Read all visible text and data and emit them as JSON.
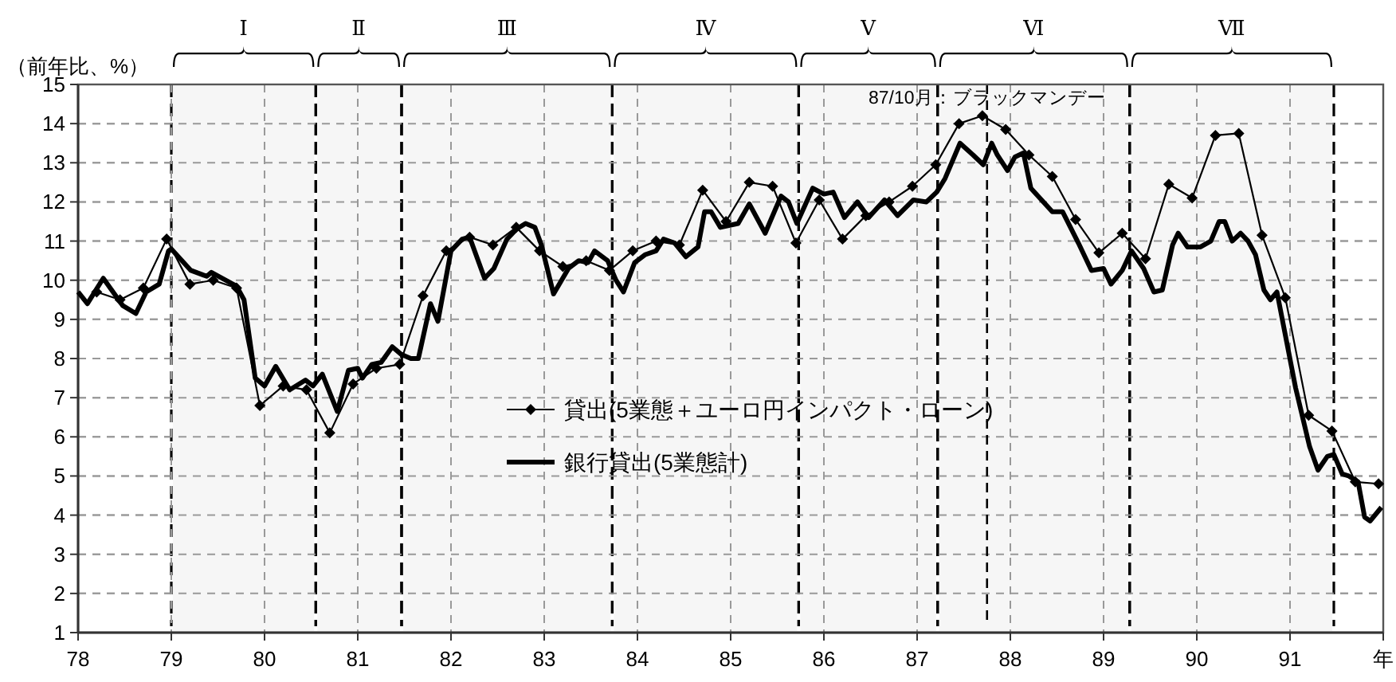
{
  "chart_data": {
    "type": "line",
    "ylabel": "（前年比、%）",
    "xlim": [
      78,
      92
    ],
    "xticks": [
      78,
      79,
      80,
      81,
      82,
      83,
      84,
      85,
      86,
      87,
      88,
      89,
      90,
      91,
      {
        "value": 92,
        "label": "年"
      }
    ],
    "ylim": [
      1,
      15
    ],
    "yticks": [
      1,
      2,
      3,
      4,
      5,
      6,
      7,
      8,
      9,
      10,
      11,
      12,
      13,
      14,
      15
    ],
    "grid": true,
    "legend": "center",
    "series": [
      {
        "name": "貸出(5業態＋ユーロ円インパクト・ローン)",
        "color": "#000000",
        "marker": "diamond",
        "x": [
          78.2,
          78.45,
          78.7,
          78.95,
          79.2,
          79.45,
          79.7,
          79.95,
          80.2,
          80.45,
          80.7,
          80.95,
          81.2,
          81.45,
          81.7,
          81.95,
          82.2,
          82.45,
          82.7,
          82.95,
          83.2,
          83.45,
          83.7,
          83.95,
          84.2,
          84.45,
          84.7,
          84.95,
          85.2,
          85.45,
          85.7,
          85.95,
          86.2,
          86.45,
          86.7,
          86.95,
          87.2,
          87.45,
          87.7,
          87.95,
          88.2,
          88.45,
          88.7,
          88.95,
          89.2,
          89.45,
          89.7,
          89.95,
          90.2,
          90.45,
          90.7,
          90.95,
          91.2,
          91.45,
          91.7,
          91.95
        ],
        "values": [
          9.7,
          9.5,
          9.8,
          11.05,
          9.9,
          10.0,
          9.8,
          6.8,
          7.3,
          7.2,
          6.1,
          7.35,
          7.75,
          7.85,
          9.6,
          10.75,
          11.1,
          10.9,
          11.35,
          10.75,
          10.35,
          10.5,
          10.25,
          10.75,
          11.0,
          10.9,
          12.3,
          11.5,
          12.5,
          12.4,
          10.95,
          12.05,
          11.05,
          11.65,
          12.0,
          12.4,
          12.95,
          14.0,
          14.2,
          13.85,
          13.2,
          12.65,
          11.55,
          10.7,
          11.2,
          10.55,
          12.45,
          12.1,
          13.7,
          13.75,
          11.15,
          9.55,
          6.55,
          6.15,
          4.85,
          4.8
        ]
      },
      {
        "name": "銀行貸出(5業態計)",
        "color": "#000000",
        "marker": "none",
        "x": [
          78.0,
          78.1,
          78.27,
          78.48,
          78.62,
          78.73,
          78.87,
          78.97,
          79.0,
          79.21,
          79.38,
          79.43,
          79.7,
          79.78,
          79.9,
          80.0,
          80.12,
          80.27,
          80.44,
          80.52,
          80.62,
          80.78,
          80.9,
          81.0,
          81.05,
          81.15,
          81.25,
          81.37,
          81.47,
          81.57,
          81.65,
          81.78,
          81.86,
          82.0,
          82.12,
          82.2,
          82.36,
          82.46,
          82.6,
          82.7,
          82.8,
          82.9,
          82.97,
          83.1,
          83.26,
          83.37,
          83.47,
          83.54,
          83.68,
          83.77,
          83.85,
          83.97,
          84.08,
          84.2,
          84.28,
          84.4,
          84.52,
          84.65,
          84.72,
          84.79,
          84.89,
          85.08,
          85.2,
          85.37,
          85.54,
          85.62,
          85.71,
          85.88,
          86.0,
          86.1,
          86.22,
          86.36,
          86.48,
          86.65,
          86.79,
          86.96,
          87.1,
          87.21,
          87.3,
          87.46,
          87.6,
          87.71,
          87.8,
          87.86,
          87.97,
          88.05,
          88.14,
          88.22,
          88.45,
          88.56,
          88.73,
          88.87,
          89.0,
          89.08,
          89.2,
          89.3,
          89.43,
          89.54,
          89.63,
          89.74,
          89.8,
          89.9,
          90.04,
          90.15,
          90.24,
          90.3,
          90.38,
          90.47,
          90.55,
          90.63,
          90.72,
          90.79,
          90.86,
          91.06,
          91.21,
          91.3,
          91.4,
          91.47,
          91.56,
          91.63,
          91.73,
          91.8,
          91.86,
          91.98
        ],
        "values": [
          9.7,
          9.4,
          10.05,
          9.35,
          9.15,
          9.7,
          9.9,
          10.75,
          10.8,
          10.25,
          10.1,
          10.2,
          9.85,
          9.5,
          7.5,
          7.3,
          7.8,
          7.2,
          7.45,
          7.3,
          7.6,
          6.65,
          7.7,
          7.75,
          7.5,
          7.85,
          7.9,
          8.3,
          8.1,
          8.0,
          8.0,
          9.4,
          8.95,
          10.75,
          11.05,
          11.1,
          10.05,
          10.3,
          11.05,
          11.3,
          11.45,
          11.35,
          10.9,
          9.65,
          10.3,
          10.5,
          10.45,
          10.75,
          10.5,
          10.0,
          9.7,
          10.45,
          10.65,
          10.75,
          11.05,
          10.95,
          10.6,
          10.85,
          11.75,
          11.75,
          11.35,
          11.45,
          11.95,
          11.2,
          12.15,
          12.0,
          11.45,
          12.35,
          12.2,
          12.25,
          11.6,
          12.0,
          11.6,
          12.05,
          11.65,
          12.05,
          12.0,
          12.25,
          12.6,
          13.5,
          13.2,
          12.95,
          13.5,
          13.2,
          12.8,
          13.15,
          13.25,
          12.35,
          11.75,
          11.75,
          10.95,
          10.25,
          10.3,
          9.9,
          10.25,
          10.75,
          10.3,
          9.7,
          9.75,
          10.9,
          11.2,
          10.85,
          10.85,
          11.0,
          11.5,
          11.5,
          11.0,
          11.2,
          11.0,
          10.65,
          9.75,
          9.5,
          9.7,
          7.25,
          5.75,
          5.15,
          5.5,
          5.55,
          5.05,
          5.0,
          4.85,
          3.95,
          3.85,
          4.2
        ]
      }
    ],
    "ref_lines": [
      {
        "axis": "x",
        "value": 87.75,
        "label": "87/10月：ブラックマンデー",
        "line_style": "dashed"
      }
    ],
    "bands": [
      {
        "axis": "x",
        "from": 79.0,
        "to": 80.55,
        "label": "Ⅰ",
        "color": "#f6f6f6"
      },
      {
        "axis": "x",
        "from": 80.55,
        "to": 81.47,
        "label": "Ⅱ",
        "color": "#f6f6f6"
      },
      {
        "axis": "x",
        "from": 81.47,
        "to": 83.73,
        "label": "Ⅲ",
        "color": "#f6f6f6"
      },
      {
        "axis": "x",
        "from": 83.73,
        "to": 85.73,
        "label": "Ⅳ",
        "color": "#f6f6f6"
      },
      {
        "axis": "x",
        "from": 85.73,
        "to": 87.22,
        "label": "Ⅴ",
        "color": "#f6f6f6"
      },
      {
        "axis": "x",
        "from": 87.22,
        "to": 89.28,
        "label": "Ⅵ",
        "color": "#f6f6f6"
      },
      {
        "axis": "x",
        "from": 89.28,
        "to": 91.47,
        "label": "Ⅶ",
        "color": "#f6f6f6"
      }
    ]
  }
}
